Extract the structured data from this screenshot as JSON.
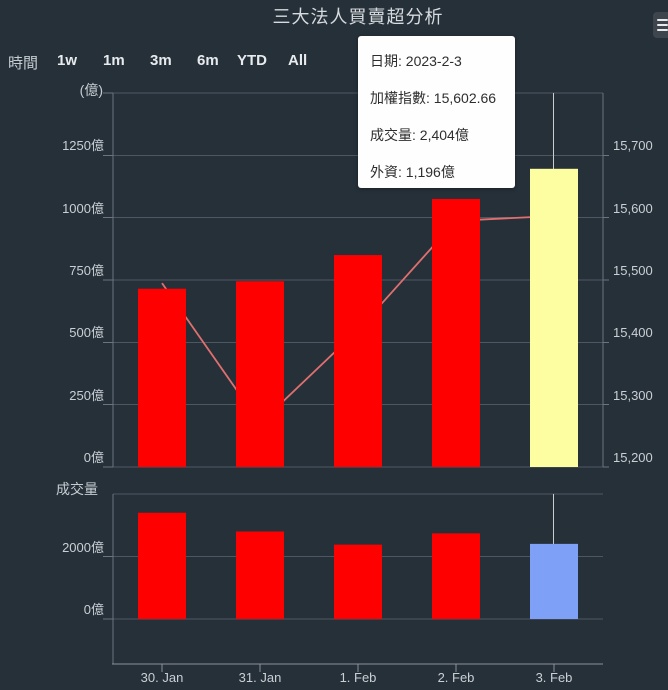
{
  "title": "三大法人買賣超分析",
  "range_selector": {
    "label": "時間",
    "buttons": [
      "1w",
      "1m",
      "3m",
      "6m",
      "YTD",
      "All"
    ]
  },
  "tooltip": {
    "rows": [
      "日期: 2023-2-3",
      "加權指數: 15,602.66",
      "成交量: 2,404億",
      "外資: 1,196億"
    ]
  },
  "menu_icon": "hamburger-menu",
  "colors": {
    "background": "#263039",
    "bar_red": "#fe0000",
    "bar_highlight_yellow": "#fdfda1",
    "bar_highlight_blue": "#7fa0f7",
    "index_line": "#e06f6f",
    "gridline": "#4d5663",
    "pane_axis_line": "#6b7480",
    "bottom_axis_line": "#8a919a",
    "crosshair": "#cccccc",
    "text": "#c9cfd5",
    "tooltip_bg": "#fefefe",
    "tooltip_text": "#2e2e2e"
  },
  "xaxis": {
    "labels": [
      "30. Jan",
      "31. Jan",
      "1. Feb",
      "2. Feb",
      "3. Feb"
    ]
  },
  "chart_data": [
    {
      "type": "bar",
      "pane": "main",
      "categories": [
        "30. Jan",
        "31. Jan",
        "1. Feb",
        "2. Feb",
        "3. Feb"
      ],
      "series": [
        {
          "name": "外資",
          "type": "column",
          "unit": "億",
          "values": [
            715,
            745,
            850,
            1075,
            1196
          ],
          "highlight_index": 4
        },
        {
          "name": "加權指數",
          "type": "line",
          "values": [
            15495,
            15270,
            15420,
            15595,
            15602.66
          ]
        }
      ],
      "yaxis_left": {
        "title": "(億)",
        "tick_labels": [
          "0億",
          "250億",
          "500億",
          "750億",
          "1000億",
          "1250億"
        ],
        "tick_values": [
          0,
          250,
          500,
          750,
          1000,
          1250
        ],
        "range": [
          0,
          1500
        ]
      },
      "yaxis_right": {
        "tick_labels": [
          "15,200",
          "15,300",
          "15,400",
          "15,500",
          "15,600",
          "15,700"
        ],
        "tick_values": [
          15200,
          15300,
          15400,
          15500,
          15600,
          15700
        ],
        "range": [
          15200,
          15800
        ]
      },
      "grid": true,
      "crosshair_category_index": 4
    },
    {
      "type": "bar",
      "pane": "volume",
      "title": "成交量",
      "categories": [
        "30. Jan",
        "31. Jan",
        "1. Feb",
        "2. Feb",
        "3. Feb"
      ],
      "values": [
        3400,
        2800,
        2380,
        2740,
        2404
      ],
      "highlight_index": 4,
      "yaxis": {
        "tick_labels": [
          "0億",
          "2000億"
        ],
        "tick_values": [
          0,
          2000
        ],
        "range": [
          0,
          4000
        ]
      },
      "grid": true,
      "crosshair_category_index": 4
    }
  ]
}
